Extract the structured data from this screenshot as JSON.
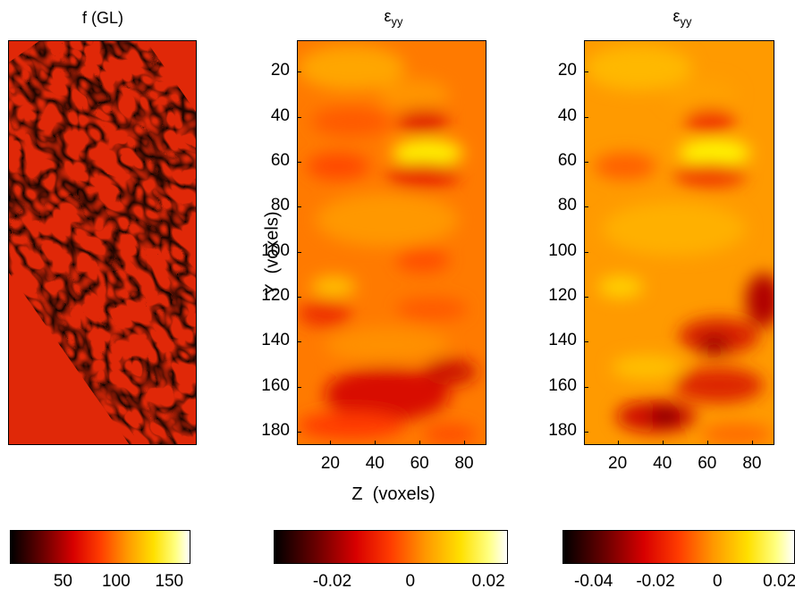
{
  "chart_data": [
    {
      "type": "heatmap",
      "title": "f (GL)",
      "xlabel": "",
      "ylabel": "",
      "colormap": "hot",
      "colorbar": {
        "ticks": [
          "50",
          "100",
          "150"
        ],
        "range": [
          0,
          170
        ]
      }
    },
    {
      "type": "heatmap",
      "title_main": "ε",
      "title_sub": "yy",
      "xlabel": "Z  (voxels)",
      "ylabel": "Y  (voxels)",
      "x_ticks": [
        "20",
        "40",
        "60",
        "80"
      ],
      "y_ticks": [
        "20",
        "40",
        "60",
        "80",
        "100",
        "120",
        "140",
        "160",
        "180"
      ],
      "xlim": [
        5,
        90
      ],
      "ylim": [
        6,
        186
      ],
      "colormap": "hot",
      "colorbar": {
        "ticks": [
          "-0.02",
          "0",
          "0.02"
        ],
        "range": [
          -0.035,
          0.025
        ]
      }
    },
    {
      "type": "heatmap",
      "title_main": "ε",
      "title_sub": "yy",
      "xlabel": "",
      "ylabel": "",
      "x_ticks": [
        "20",
        "40",
        "60",
        "80"
      ],
      "y_ticks": [
        "20",
        "40",
        "60",
        "80",
        "100",
        "120",
        "140",
        "160",
        "180"
      ],
      "xlim": [
        5,
        90
      ],
      "ylim": [
        6,
        186
      ],
      "colormap": "hot",
      "colorbar": {
        "ticks": [
          "-0.04",
          "-0.02",
          "0",
          "0.02"
        ],
        "range": [
          -0.05,
          0.025
        ]
      }
    }
  ],
  "colors": {
    "black": "#000000",
    "dark_red": "#8b0000",
    "red": "#ff2000",
    "orange": "#ff8c00",
    "yellow": "#ffff00",
    "white": "#ffffff"
  }
}
